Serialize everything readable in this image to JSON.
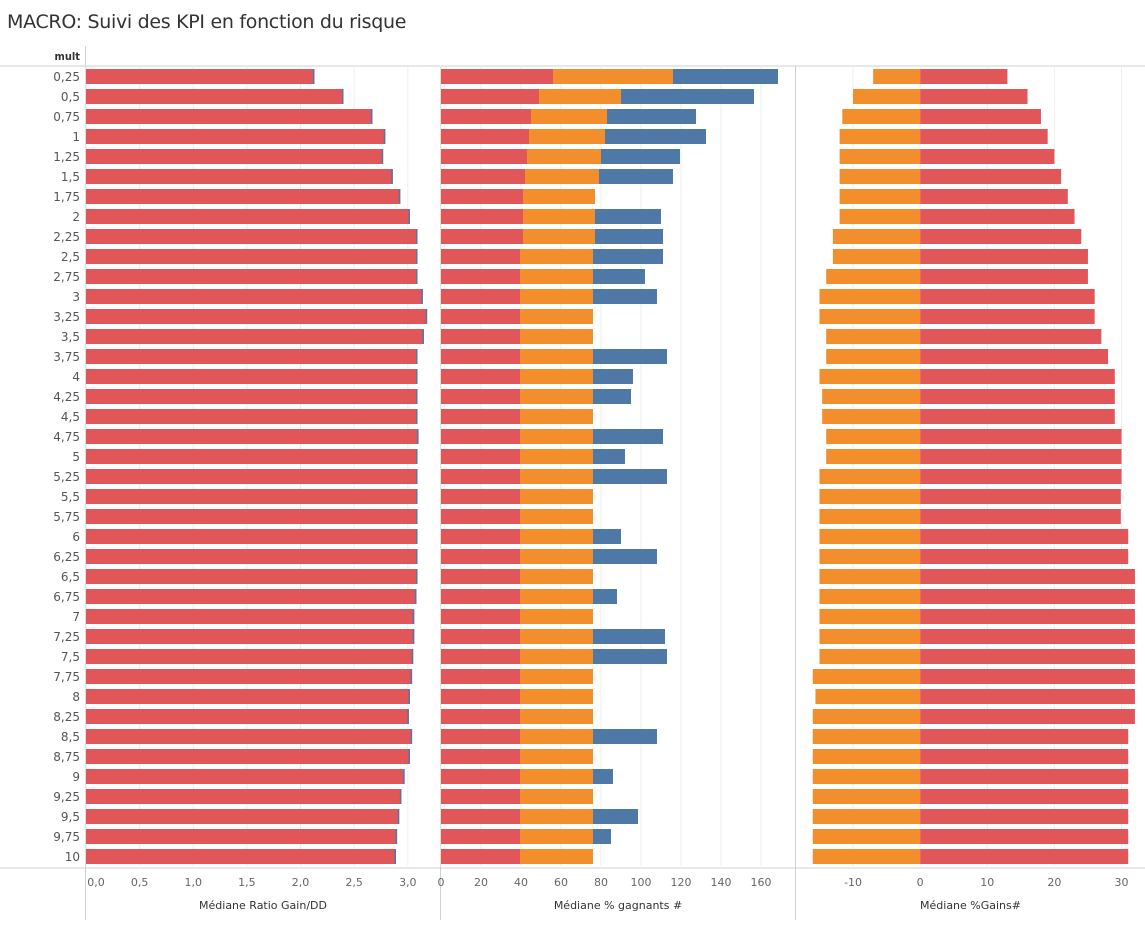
{
  "title": "MACRO: Suivi des KPI en fonction du risque",
  "chart_data": {
    "type": "bar",
    "row_header": "mult",
    "categories": [
      "0,25",
      "0,5",
      "0,75",
      "1",
      "1,25",
      "1,5",
      "1,75",
      "2",
      "2,25",
      "2,5",
      "2,75",
      "3",
      "3,25",
      "3,5",
      "3,75",
      "4",
      "4,25",
      "4,5",
      "4,75",
      "5",
      "5,25",
      "5,5",
      "5,75",
      "6",
      "6,25",
      "6,5",
      "6,75",
      "7",
      "7,25",
      "7,5",
      "7,75",
      "8",
      "8,25",
      "8,5",
      "8,75",
      "9",
      "9,25",
      "9,5",
      "9,75",
      "10"
    ],
    "panels": [
      {
        "title": "Médiane Ratio Gain/DD",
        "ticks": [
          "0,0",
          "0,5",
          "1,0",
          "1,5",
          "2,0",
          "2,5",
          "3,0"
        ],
        "tick_values": [
          0,
          0.5,
          1,
          1.5,
          2,
          2.5,
          3
        ],
        "xlim": [
          0,
          3.3
        ],
        "series": [
          {
            "name": "ratio",
            "color": "#e15759",
            "values": [
              2.13,
              2.4,
              2.67,
              2.79,
              2.77,
              2.86,
              2.93,
              3.02,
              3.09,
              3.09,
              3.09,
              3.14,
              3.18,
              3.15,
              3.09,
              3.09,
              3.09,
              3.09,
              3.1,
              3.09,
              3.09,
              3.09,
              3.09,
              3.09,
              3.09,
              3.09,
              3.08,
              3.06,
              3.06,
              3.05,
              3.04,
              3.02,
              3.01,
              3.04,
              3.02,
              2.97,
              2.94,
              2.92,
              2.9,
              2.89
            ]
          }
        ]
      },
      {
        "title": "Médiane % gagnants #",
        "ticks": [
          "0",
          "20",
          "40",
          "60",
          "80",
          "100",
          "120",
          "140",
          "160"
        ],
        "tick_values": [
          0,
          20,
          40,
          60,
          80,
          100,
          120,
          140,
          160
        ],
        "xlim": [
          0,
          177
        ],
        "stacked": true,
        "series": [
          {
            "name": "red",
            "color": "#e15759",
            "values": [
              56,
              49,
              45,
              44,
              43,
              42,
              41,
              41,
              41,
              39.5,
              39.5,
              39.5,
              39.5,
              39.5,
              39.5,
              39.5,
              39.5,
              39.5,
              39.5,
              39.5,
              39.5,
              39.5,
              39.5,
              39.5,
              39.5,
              39.5,
              39.5,
              39.5,
              39.5,
              39.5,
              39.5,
              39.5,
              39.5,
              39.5,
              39.5,
              39.5,
              39.5,
              39.5,
              39.5,
              39.5
            ]
          },
          {
            "name": "orange",
            "color": "#f28e2b",
            "values": [
              60,
              41,
              38,
              38,
              37,
              37,
              36,
              36,
              36,
              36.5,
              36.5,
              36.5,
              36.5,
              36.5,
              36.5,
              36.5,
              36.5,
              36.5,
              36.5,
              36.5,
              36.5,
              36.5,
              36.5,
              36.5,
              36.5,
              36.5,
              36.5,
              36.5,
              36.5,
              36.5,
              36.5,
              36.5,
              36.5,
              36.5,
              36.5,
              36.5,
              36.5,
              36.5,
              36.5,
              36.5
            ]
          },
          {
            "name": "blue",
            "color": "#4e79a7",
            "values": [
              52.5,
              66.5,
              44.5,
              50.5,
              39.5,
              37,
              0,
              33,
              34,
              35,
              26,
              32,
              0,
              0,
              37,
              20,
              19,
              0,
              35,
              16,
              37,
              0,
              0,
              14,
              32,
              0,
              12,
              0,
              36,
              37,
              0,
              0,
              0,
              32,
              0,
              10,
              0,
              22.5,
              9,
              0
            ]
          }
        ]
      },
      {
        "title": "Médiane %Gains#",
        "ticks": [
          "-10",
          "0",
          "10",
          "20",
          "30"
        ],
        "tick_values": [
          -10,
          0,
          10,
          20,
          30
        ],
        "xlim": [
          -18.5,
          33.5
        ],
        "series": [
          {
            "name": "negative",
            "color": "#f28e2b",
            "values": [
              -7,
              -10,
              -11.6,
              -12,
              -12,
              -12,
              -12,
              -12,
              -13,
              -13,
              -14,
              -15,
              -15,
              -14,
              -14,
              -15,
              -14.6,
              -14.6,
              -14,
              -14,
              -15,
              -15,
              -15,
              -15,
              -15,
              -15,
              -15,
              -15,
              -15,
              -15,
              -16,
              -15.6,
              -16,
              -16,
              -16,
              -16,
              -16,
              -16,
              -16,
              -16
            ]
          },
          {
            "name": "positive",
            "color": "#e15759",
            "values": [
              13,
              16,
              18,
              19,
              20,
              21,
              22,
              23,
              24,
              25,
              25,
              26,
              26,
              27,
              28,
              29,
              29,
              29,
              30,
              30,
              30,
              29.9,
              29.9,
              31,
              31,
              32,
              32,
              32,
              32,
              32,
              32,
              32,
              32,
              31,
              31,
              31,
              31,
              31,
              31,
              31
            ]
          }
        ]
      }
    ]
  }
}
